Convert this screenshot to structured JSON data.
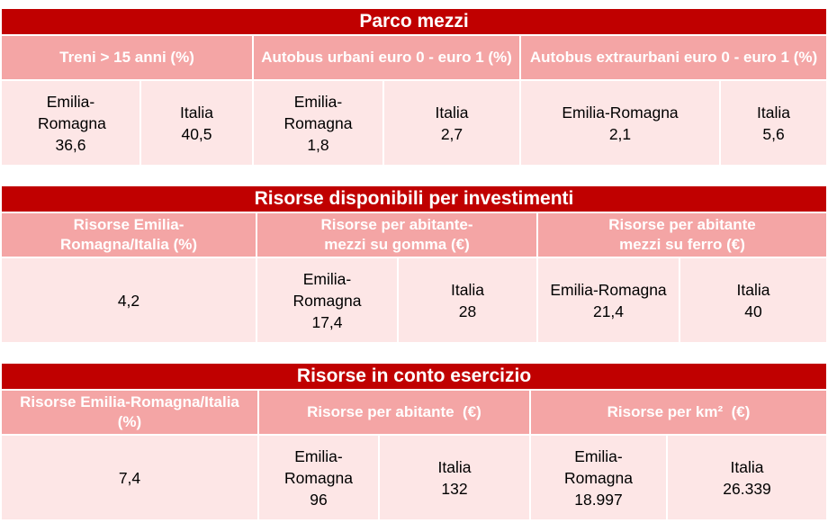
{
  "sections": [
    {
      "title": "Parco mezzi",
      "headers": [
        "Treni > 15 anni (%)",
        "Autobus urbani euro 0 - euro 1 (%)",
        "Autobus extraurbani euro 0 - euro 1 (%)"
      ],
      "values": [
        {
          "region": "Emilia-Romagna",
          "value": "36,6"
        },
        {
          "region": "Italia",
          "value": "40,5"
        },
        {
          "region": "Emilia-Romagna",
          "value": "1,8"
        },
        {
          "region": "Italia",
          "value": "2,7"
        },
        {
          "region": "Emilia-Romagna",
          "value": "2,1"
        },
        {
          "region": "Italia",
          "value": "5,6"
        }
      ]
    },
    {
      "title": "Risorse disponibili per investimenti",
      "headers": [
        "Risorse Emilia-Romagna/Italia (%)",
        "Risorse per abitante- mezzi su gomma (€)",
        "Risorse per abitante mezzi su ferro (€)"
      ],
      "single_value": "4,2",
      "values": [
        {
          "region": "Emilia-Romagna",
          "value": "17,4"
        },
        {
          "region": "Italia",
          "value": "28"
        },
        {
          "region": "Emilia-Romagna",
          "value": "21,4"
        },
        {
          "region": "Italia",
          "value": "40"
        }
      ]
    },
    {
      "title": "Risorse in conto esercizio",
      "headers": [
        "Risorse Emilia-Romagna/Italia (%)",
        "Risorse per abitante  (€)",
        "Risorse per km²  (€)"
      ],
      "single_value": "7,4",
      "values": [
        {
          "region": "Emilia-Romagna",
          "value": "96"
        },
        {
          "region": "Italia",
          "value": "132"
        },
        {
          "region": "Emilia-Romagna",
          "value": "18.997"
        },
        {
          "region": "Italia",
          "value": "26.339"
        }
      ]
    }
  ],
  "colors": {
    "title_bg": "#c00000",
    "header_bg": "#f4a5a5",
    "value_bg": "#fde6e6"
  }
}
